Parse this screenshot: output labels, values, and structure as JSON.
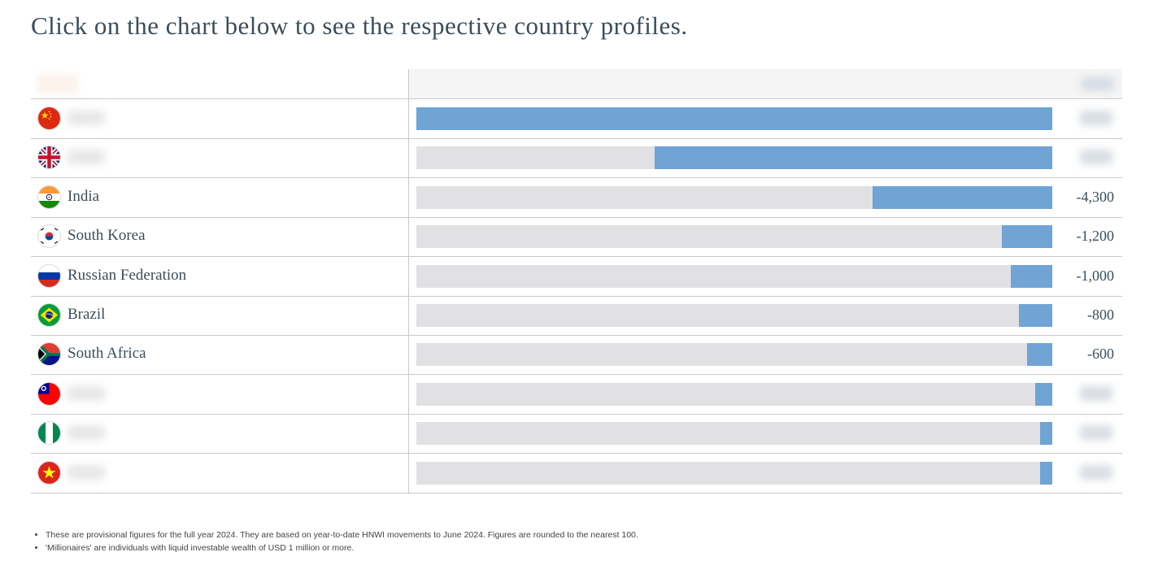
{
  "heading": "Click on the chart below to see the respective country profiles.",
  "chart_data": {
    "type": "bar",
    "orientation": "horizontal",
    "categories": [
      "",
      "",
      "India",
      "South Korea",
      "Russian Federation",
      "Brazil",
      "South Africa",
      "",
      "",
      ""
    ],
    "values": [
      -15200,
      -9500,
      -4300,
      -1200,
      -1000,
      -800,
      -600,
      -400,
      -300,
      -300
    ],
    "value_labels": [
      "",
      "",
      "-4,300",
      "-1,200",
      "-1,000",
      "-800",
      "-600",
      "",
      "",
      ""
    ],
    "flags": [
      "china",
      "uk",
      "india",
      "south-korea",
      "russia",
      "brazil",
      "south-africa",
      "taiwan",
      "nigeria",
      "vietnam"
    ],
    "xlim": [
      -15200,
      0
    ],
    "bar_color": "#6fa4d5",
    "track_color": "#e1e1e3",
    "title": "",
    "xlabel": "",
    "ylabel": ""
  },
  "footnotes": [
    "These are provisional figures for the full year 2024. They are based on year-to-date HNWI movements to June 2024. Figures are rounded to the nearest 100.",
    "'Millionaires' are individuals with liquid investable wealth of USD 1 million or more."
  ]
}
